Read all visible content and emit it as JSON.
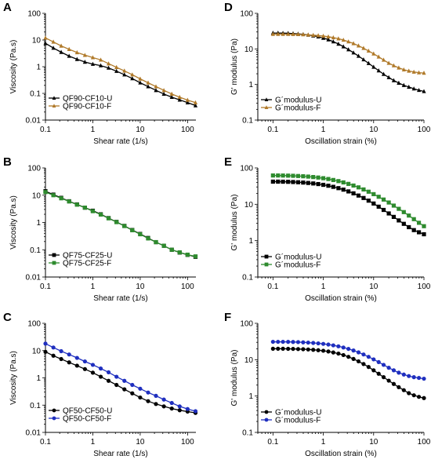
{
  "chart_data": [
    {
      "panel": "A",
      "type": "line",
      "xscale": "log",
      "yscale": "log",
      "xlabel": "Shear rate (1/s)",
      "ylabel": "Viscosity (Pa.s)",
      "xlim": [
        0.1,
        150
      ],
      "ylim": [
        0.01,
        100
      ],
      "xticks": [
        "0.1",
        "1",
        "10",
        "100"
      ],
      "yticks": [
        "0.01",
        "0.1",
        "1",
        "10",
        "100"
      ],
      "legend": "bottom-left",
      "series": [
        {
          "name": "QF90-CF10-U",
          "color": "#000000",
          "marker": "triangle",
          "x": [
            0.1,
            0.147,
            0.215,
            0.316,
            0.464,
            0.681,
            1.0,
            1.47,
            2.15,
            3.16,
            4.64,
            6.81,
            10,
            14.7,
            21.5,
            31.6,
            46.4,
            68.1,
            100,
            147
          ],
          "y": [
            7.5,
            5.0,
            3.5,
            2.5,
            1.9,
            1.5,
            1.25,
            1.1,
            0.9,
            0.68,
            0.5,
            0.36,
            0.25,
            0.18,
            0.13,
            0.095,
            0.072,
            0.057,
            0.045,
            0.035
          ]
        },
        {
          "name": "QF90-CF10-F",
          "color": "#B07A2A",
          "marker": "triangle",
          "x": [
            0.1,
            0.147,
            0.215,
            0.316,
            0.464,
            0.681,
            1.0,
            1.47,
            2.15,
            3.16,
            4.64,
            6.81,
            10,
            14.7,
            21.5,
            31.6,
            46.4,
            68.1,
            100,
            147
          ],
          "y": [
            12,
            8.5,
            6.0,
            4.5,
            3.4,
            2.7,
            2.2,
            1.8,
            1.3,
            0.95,
            0.7,
            0.5,
            0.35,
            0.25,
            0.18,
            0.13,
            0.095,
            0.072,
            0.056,
            0.045
          ]
        }
      ]
    },
    {
      "panel": "B",
      "type": "line",
      "xscale": "log",
      "yscale": "log",
      "xlabel": "Shear rate (1/s)",
      "ylabel": "Viscosity (Pa.s)",
      "xlim": [
        0.1,
        150
      ],
      "ylim": [
        0.01,
        100
      ],
      "xticks": [
        "0.1",
        "1",
        "10",
        "100"
      ],
      "yticks": [
        "0.01",
        "0.1",
        "1",
        "10",
        "100"
      ],
      "legend": "bottom-left",
      "series": [
        {
          "name": "QF75-CF25-U",
          "color": "#000000",
          "marker": "square",
          "x": [
            0.1,
            0.147,
            0.215,
            0.316,
            0.464,
            0.681,
            1.0,
            1.47,
            2.15,
            3.16,
            4.64,
            6.81,
            10,
            14.7,
            21.5,
            31.6,
            46.4,
            68.1,
            100,
            147
          ],
          "y": [
            14,
            10.5,
            8.0,
            6.0,
            4.6,
            3.5,
            2.7,
            2.0,
            1.45,
            1.05,
            0.75,
            0.53,
            0.38,
            0.27,
            0.19,
            0.14,
            0.1,
            0.079,
            0.065,
            0.055
          ]
        },
        {
          "name": "QF75-CF25-F",
          "color": "#2E8B2E",
          "marker": "square",
          "x": [
            0.1,
            0.147,
            0.215,
            0.316,
            0.464,
            0.681,
            1.0,
            1.47,
            2.15,
            3.16,
            4.64,
            6.81,
            10,
            14.7,
            21.5,
            31.6,
            46.4,
            68.1,
            100,
            147
          ],
          "y": [
            13,
            10,
            7.7,
            5.9,
            4.5,
            3.5,
            2.6,
            1.95,
            1.42,
            1.03,
            0.74,
            0.52,
            0.37,
            0.26,
            0.19,
            0.14,
            0.1,
            0.08,
            0.066,
            0.057
          ]
        }
      ]
    },
    {
      "panel": "C",
      "type": "line",
      "xscale": "log",
      "yscale": "log",
      "xlabel": "Shear rate (1/s)",
      "ylabel": "Viscosity (Pa.s)",
      "xlim": [
        0.1,
        150
      ],
      "ylim": [
        0.01,
        100
      ],
      "xticks": [
        "0.1",
        "1",
        "10",
        "100"
      ],
      "yticks": [
        "0.01",
        "0.1",
        "1",
        "10",
        "100"
      ],
      "legend": "bottom-left",
      "series": [
        {
          "name": "QF50-CF50-U",
          "color": "#000000",
          "marker": "circle",
          "x": [
            0.1,
            0.147,
            0.215,
            0.316,
            0.464,
            0.681,
            1.0,
            1.47,
            2.15,
            3.16,
            4.64,
            6.81,
            10,
            14.7,
            21.5,
            31.6,
            46.4,
            68.1,
            100,
            147
          ],
          "y": [
            9.0,
            6.5,
            4.9,
            3.7,
            2.8,
            2.1,
            1.55,
            1.1,
            0.78,
            0.55,
            0.38,
            0.27,
            0.19,
            0.14,
            0.11,
            0.09,
            0.075,
            0.065,
            0.058,
            0.052
          ]
        },
        {
          "name": "QF50-CF50-F",
          "color": "#1F2FBF",
          "marker": "circle",
          "x": [
            0.1,
            0.147,
            0.215,
            0.316,
            0.464,
            0.681,
            1.0,
            1.47,
            2.15,
            3.16,
            4.64,
            6.81,
            10,
            14.7,
            21.5,
            31.6,
            46.4,
            68.1,
            100,
            147
          ],
          "y": [
            18,
            13,
            9.5,
            7.2,
            5.4,
            4.0,
            3.0,
            2.2,
            1.6,
            1.1,
            0.78,
            0.55,
            0.4,
            0.29,
            0.22,
            0.16,
            0.12,
            0.09,
            0.072,
            0.06
          ]
        }
      ]
    },
    {
      "panel": "D",
      "type": "line",
      "xscale": "log",
      "yscale": "log",
      "xlabel": "Oscillation strain (%)",
      "ylabel": "G' modulus (Pa)",
      "xlim": [
        0.05,
        100
      ],
      "ylim": [
        0.1,
        100
      ],
      "xticks": [
        "0.1",
        "1",
        "10",
        "100"
      ],
      "yticks": [
        "0.1",
        "1",
        "10",
        "100"
      ],
      "legend": "bottom-left",
      "series": [
        {
          "name": "G´modulus-U",
          "color": "#000000",
          "marker": "triangle",
          "x": [
            0.1,
            0.126,
            0.158,
            0.2,
            0.251,
            0.316,
            0.398,
            0.501,
            0.631,
            0.794,
            1.0,
            1.26,
            1.58,
            2.0,
            2.51,
            3.16,
            3.98,
            5.01,
            6.31,
            7.94,
            10,
            12.6,
            15.8,
            20,
            25.1,
            31.6,
            39.8,
            50.1,
            63.1,
            79.4,
            100
          ],
          "y": [
            28,
            28,
            27.8,
            27.5,
            27,
            26.4,
            25.7,
            24.7,
            23.5,
            22,
            20.2,
            18.2,
            16.0,
            13.8,
            11.6,
            9.6,
            7.8,
            6.3,
            5.0,
            3.95,
            3.1,
            2.45,
            1.95,
            1.58,
            1.3,
            1.1,
            0.95,
            0.85,
            0.76,
            0.69,
            0.64
          ]
        },
        {
          "name": "G´modulus-F",
          "color": "#B07A2A",
          "marker": "triangle",
          "x": [
            0.1,
            0.126,
            0.158,
            0.2,
            0.251,
            0.316,
            0.398,
            0.501,
            0.631,
            0.794,
            1.0,
            1.26,
            1.58,
            2.0,
            2.51,
            3.16,
            3.98,
            5.01,
            6.31,
            7.94,
            10,
            12.6,
            15.8,
            20,
            25.1,
            31.6,
            39.8,
            50.1,
            63.1,
            79.4,
            100
          ],
          "y": [
            26,
            26,
            26,
            25.9,
            25.8,
            25.6,
            25.3,
            24.9,
            24.4,
            23.8,
            23.0,
            22.0,
            20.8,
            19.4,
            17.8,
            16.0,
            14.2,
            12.3,
            10.5,
            8.8,
            7.3,
            6.0,
            4.9,
            4.0,
            3.4,
            2.95,
            2.6,
            2.4,
            2.25,
            2.15,
            2.1
          ]
        }
      ]
    },
    {
      "panel": "E",
      "type": "line",
      "xscale": "log",
      "yscale": "log",
      "xlabel": "Oscillation strain (%)",
      "ylabel": "G' modulus (Pa)",
      "xlim": [
        0.05,
        100
      ],
      "ylim": [
        0.1,
        100
      ],
      "xticks": [
        "0.1",
        "1",
        "10",
        "100"
      ],
      "yticks": [
        "0.1",
        "1",
        "10",
        "100"
      ],
      "legend": "bottom-left",
      "series": [
        {
          "name": "G´modulus-U",
          "color": "#000000",
          "marker": "square",
          "x": [
            0.1,
            0.126,
            0.158,
            0.2,
            0.251,
            0.316,
            0.398,
            0.501,
            0.631,
            0.794,
            1.0,
            1.26,
            1.58,
            2.0,
            2.51,
            3.16,
            3.98,
            5.01,
            6.31,
            7.94,
            10,
            12.6,
            15.8,
            20,
            25.1,
            31.6,
            39.8,
            50.1,
            63.1,
            79.4,
            100
          ],
          "y": [
            42,
            42,
            41.8,
            41.5,
            41,
            40.4,
            39.6,
            38.6,
            37.4,
            36,
            34.3,
            32.4,
            30.2,
            27.8,
            25.3,
            22.6,
            20,
            17.4,
            14.9,
            12.6,
            10.5,
            8.6,
            7.0,
            5.6,
            4.5,
            3.6,
            2.9,
            2.35,
            1.95,
            1.7,
            1.5
          ]
        },
        {
          "name": "G´modulus-F",
          "color": "#2E8B2E",
          "marker": "square",
          "x": [
            0.1,
            0.126,
            0.158,
            0.2,
            0.251,
            0.316,
            0.398,
            0.501,
            0.631,
            0.794,
            1.0,
            1.26,
            1.58,
            2.0,
            2.51,
            3.16,
            3.98,
            5.01,
            6.31,
            7.94,
            10,
            12.6,
            15.8,
            20,
            25.1,
            31.6,
            39.8,
            50.1,
            63.1,
            79.4,
            100
          ],
          "y": [
            62,
            62,
            61.8,
            61.4,
            60.8,
            60,
            59,
            57.8,
            56.2,
            54.4,
            52.2,
            49.6,
            46.6,
            43.4,
            40,
            36.4,
            32.8,
            29.2,
            25.6,
            22.2,
            19,
            16.1,
            13.5,
            11.2,
            9.2,
            7.5,
            6.1,
            4.9,
            3.9,
            3.1,
            2.5
          ]
        }
      ]
    },
    {
      "panel": "F",
      "type": "line",
      "xscale": "log",
      "yscale": "log",
      "xlabel": "Oscillation strain (%)",
      "ylabel": "G' modulus (Pa)",
      "xlim": [
        0.05,
        100
      ],
      "ylim": [
        0.1,
        100
      ],
      "xticks": [
        "0.1",
        "1",
        "10",
        "100"
      ],
      "yticks": [
        "0.1",
        "1",
        "10",
        "100"
      ],
      "legend": "bottom-left",
      "series": [
        {
          "name": "G´modulus-U",
          "color": "#000000",
          "marker": "circle",
          "x": [
            0.1,
            0.126,
            0.158,
            0.2,
            0.251,
            0.316,
            0.398,
            0.501,
            0.631,
            0.794,
            1.0,
            1.26,
            1.58,
            2.0,
            2.51,
            3.16,
            3.98,
            5.01,
            6.31,
            7.94,
            10,
            12.6,
            15.8,
            20,
            25.1,
            31.6,
            39.8,
            50.1,
            63.1,
            79.4,
            100
          ],
          "y": [
            20,
            20,
            20,
            19.9,
            19.8,
            19.6,
            19.4,
            19.1,
            18.7,
            18.2,
            17.6,
            16.8,
            15.8,
            14.7,
            13.4,
            12,
            10.5,
            9.0,
            7.6,
            6.3,
            5.1,
            4.1,
            3.3,
            2.65,
            2.15,
            1.75,
            1.45,
            1.2,
            1.05,
            0.95,
            0.88
          ]
        },
        {
          "name": "G´modulus-F",
          "color": "#1F2FBF",
          "marker": "circle",
          "x": [
            0.1,
            0.126,
            0.158,
            0.2,
            0.251,
            0.316,
            0.398,
            0.501,
            0.631,
            0.794,
            1.0,
            1.26,
            1.58,
            2.0,
            2.51,
            3.16,
            3.98,
            5.01,
            6.31,
            7.94,
            10,
            12.6,
            15.8,
            20,
            25.1,
            31.6,
            39.8,
            50.1,
            63.1,
            79.4,
            100
          ],
          "y": [
            31,
            31,
            31,
            30.9,
            30.7,
            30.4,
            30,
            29.5,
            28.9,
            28.1,
            27.2,
            26.1,
            24.8,
            23.3,
            21.6,
            19.8,
            17.9,
            15.9,
            13.9,
            12,
            10.2,
            8.6,
            7.2,
            6.0,
            5.1,
            4.4,
            3.9,
            3.55,
            3.3,
            3.15,
            3.0
          ]
        }
      ]
    }
  ]
}
